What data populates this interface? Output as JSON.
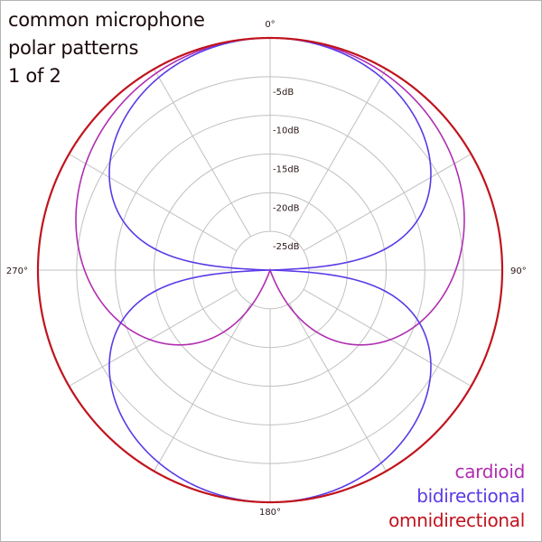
{
  "title_lines": [
    "common microphone",
    "polar patterns",
    "1 of 2"
  ],
  "chart_data": {
    "type": "polar",
    "title": "common microphone polar patterns 1 of 2",
    "angular_axis": {
      "direction": "clockwise",
      "zero_at": "top",
      "labels": [
        {
          "angle": 0,
          "text": "0°"
        },
        {
          "angle": 90,
          "text": "90°"
        },
        {
          "angle": 180,
          "text": "180°"
        },
        {
          "angle": 270,
          "text": "270°"
        }
      ],
      "spoke_step_deg": 30
    },
    "radial_axis": {
      "unit": "dB",
      "range": [
        -30,
        0
      ],
      "rings": [
        0,
        -5,
        -10,
        -15,
        -20,
        -25
      ],
      "ring_labels": [
        "-5dB",
        "-10dB",
        "-15dB",
        "-20dB",
        "-25dB"
      ],
      "grid": true
    },
    "series": [
      {
        "name": "cardioid",
        "color": "#b02eb0",
        "formula": "(1+cos θ)/2",
        "values_db": {
          "0": 0,
          "30": -0.3,
          "60": -2.5,
          "90": -6.0,
          "120": -12.0,
          "150": -23.4,
          "180": -30
        }
      },
      {
        "name": "bidirectional",
        "color": "#5b3ae6",
        "formula": "|cos θ|",
        "values_db": {
          "0": 0,
          "30": -1.2,
          "60": -6.0,
          "90": -30,
          "120": -6.0,
          "150": -1.2,
          "180": 0
        }
      },
      {
        "name": "omnidirectional",
        "color": "#c0141e",
        "formula": "1",
        "values_db": {
          "0": 0,
          "30": 0,
          "60": 0,
          "90": 0,
          "120": 0,
          "150": 0,
          "180": 0
        }
      }
    ],
    "legend": {
      "position": "bottom-right",
      "entries": [
        "cardioid",
        "bidirectional",
        "omnidirectional"
      ]
    }
  },
  "legend": {
    "cardioid": {
      "label": "cardioid",
      "color": "#b02eb0"
    },
    "bidirectional": {
      "label": "bidirectional",
      "color": "#5b3ae6"
    },
    "omnidirectional": {
      "label": "omnidirectional",
      "color": "#c0141e"
    }
  },
  "colors": {
    "grid": "#c0c0c0",
    "border": "#b4b4b4",
    "text": "#1a0a0a"
  }
}
